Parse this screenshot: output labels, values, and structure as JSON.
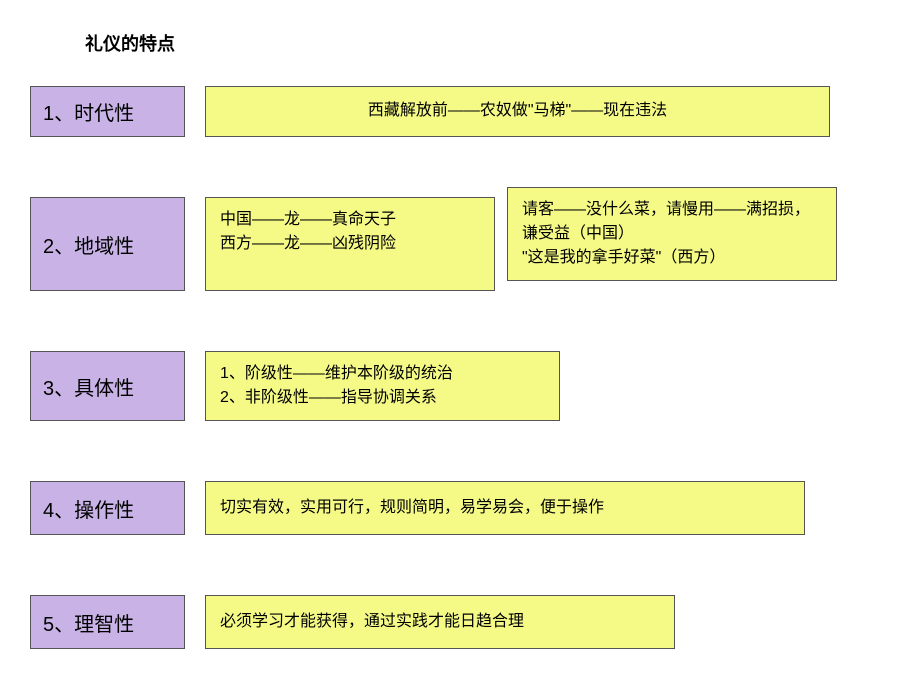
{
  "title": "礼仪的特点",
  "colors": {
    "label_bg": "#c9b3e6",
    "info_bg": "#f5fa87",
    "border": "#555555",
    "text": "#000000",
    "page_bg": "#ffffff"
  },
  "rows": [
    {
      "label": "1、时代性",
      "items": [
        {
          "text": "西藏解放前——农奴做\"马梯\"——现在违法"
        }
      ]
    },
    {
      "label": "2、地域性",
      "items": [
        {
          "text": "中国——龙——真命天子\n西方——龙——凶残阴险"
        },
        {
          "text": "请客——没什么菜，请慢用——满招损，谦受益（中国）\n\"这是我的拿手好菜\"（西方）"
        }
      ]
    },
    {
      "label": "3、具体性",
      "items": [
        {
          "text": "1、阶级性——维护本阶级的统治\n2、非阶级性——指导协调关系"
        }
      ]
    },
    {
      "label": "4、操作性",
      "items": [
        {
          "text": "切实有效，实用可行，规则简明，易学易会，便于操作"
        }
      ]
    },
    {
      "label": "5、理智性",
      "items": [
        {
          "text": "必须学习才能获得，通过实践才能日趋合理"
        }
      ]
    }
  ]
}
